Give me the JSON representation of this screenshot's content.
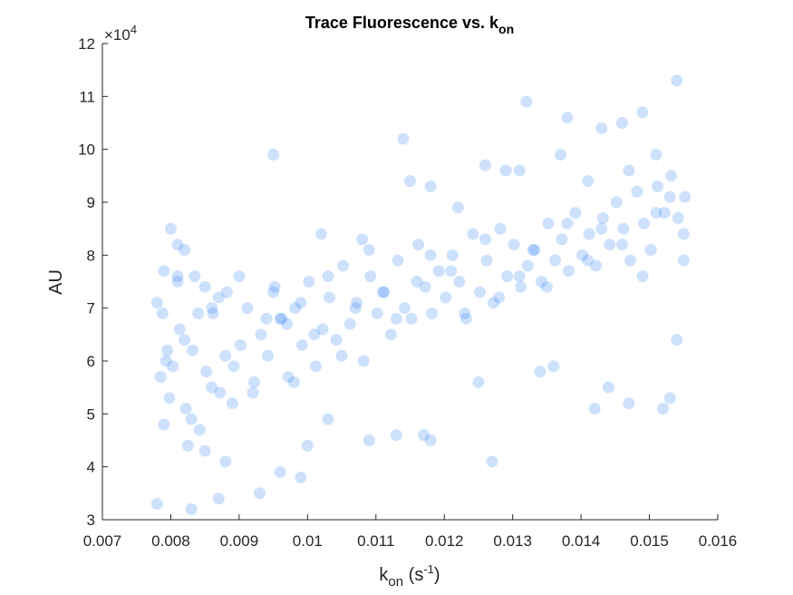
{
  "chart_data": {
    "type": "scatter",
    "title": {
      "main": "Trace Fluorescence vs. k",
      "sub": "on"
    },
    "xlabel": {
      "main": "k",
      "sub": "on",
      "unit_open": " (s",
      "sup": "-1",
      "unit_close": ")"
    },
    "ylabel": "AU",
    "y_exponent": {
      "base": "×10",
      "power": "4"
    },
    "xlim": [
      0.007,
      0.016
    ],
    "ylim": [
      3,
      12
    ],
    "x_ticks": [
      "0.007",
      "0.008",
      "0.009",
      "0.01",
      "0.011",
      "0.012",
      "0.013",
      "0.014",
      "0.015",
      "0.016"
    ],
    "y_ticks": [
      "3",
      "4",
      "5",
      "6",
      "7",
      "8",
      "9",
      "10",
      "11",
      "12"
    ],
    "grid": false,
    "marker_color": "#1f77f0",
    "marker_opacity": 0.22,
    "y_units_note": "y values in units of 10^4 AU",
    "x": [
      0.00785,
      0.0079,
      0.00795,
      0.0078,
      0.00788,
      0.00798,
      0.0081,
      0.0082,
      0.0083,
      0.00835,
      0.0084,
      0.0086,
      0.0087,
      0.0088,
      0.0089,
      0.0081,
      0.00825,
      0.0085,
      0.0092,
      0.0094,
      0.0095,
      0.0097,
      0.0098,
      0.0099,
      0.0101,
      0.0103,
      0.0105,
      0.0107,
      0.0109,
      0.0111,
      0.0113,
      0.0116,
      0.0118,
      0.0121,
      0.0123,
      0.0126,
      0.0128,
      0.0131,
      0.0133,
      0.0135,
      0.0138,
      0.0141,
      0.0143,
      0.0146,
      0.0149,
      0.0151,
      0.0153,
      0.0155,
      0.00793,
      0.00803,
      0.00813,
      0.00822,
      0.00832,
      0.00842,
      0.00852,
      0.00862,
      0.00872,
      0.00882,
      0.00892,
      0.00902,
      0.00912,
      0.00922,
      0.00932,
      0.00942,
      0.00952,
      0.00962,
      0.00972,
      0.00982,
      0.00992,
      0.01002,
      0.01012,
      0.01022,
      0.01032,
      0.01042,
      0.01052,
      0.01062,
      0.01072,
      0.01082,
      0.01092,
      0.01102,
      0.01112,
      0.01122,
      0.01132,
      0.01142,
      0.01152,
      0.01162,
      0.01172,
      0.01182,
      0.01192,
      0.01202,
      0.01212,
      0.01222,
      0.01232,
      0.01242,
      0.01252,
      0.01262,
      0.01272,
      0.01282,
      0.01292,
      0.01302,
      0.01312,
      0.01322,
      0.01332,
      0.01342,
      0.01352,
      0.01362,
      0.01372,
      0.01382,
      0.01392,
      0.01402,
      0.01412,
      0.01422,
      0.01432,
      0.01442,
      0.01452,
      0.01462,
      0.01472,
      0.01482,
      0.01492,
      0.01502,
      0.01512,
      0.01522,
      0.01532,
      0.01542,
      0.01552,
      0.0078,
      0.0083,
      0.0087,
      0.0096,
      0.0099,
      0.0103,
      0.0113,
      0.0118,
      0.0127,
      0.0136,
      0.0142,
      0.0147,
      0.0152,
      0.0154,
      0.0095,
      0.0114,
      0.0132,
      0.0138,
      0.0146,
      0.0154,
      0.0131,
      0.0149,
      0.0143,
      0.0126,
      0.0118,
      0.0082,
      0.008,
      0.0085,
      0.0088,
      0.0093,
      0.01,
      0.0109,
      0.0117,
      0.0125,
      0.0134,
      0.0144,
      0.0153,
      0.0155,
      0.0151,
      0.0147,
      0.0141,
      0.0137,
      0.0129,
      0.0122,
      0.0115,
      0.0108,
      0.0102,
      0.0096,
      0.009,
      0.0086,
      0.0081,
      0.0079
    ],
    "y": [
      5.7,
      4.8,
      6.2,
      7.1,
      6.9,
      5.3,
      7.5,
      6.4,
      4.9,
      7.6,
      6.9,
      5.5,
      7.2,
      6.1,
      5.2,
      8.2,
      4.4,
      7.4,
      5.4,
      6.8,
      7.3,
      6.7,
      5.6,
      7.1,
      6.5,
      7.6,
      6.1,
      7.0,
      8.1,
      7.3,
      6.8,
      7.5,
      8.0,
      7.7,
      6.9,
      8.3,
      7.2,
      7.6,
      8.1,
      7.4,
      8.6,
      7.9,
      8.5,
      8.2,
      7.6,
      8.8,
      9.1,
      8.4,
      6.0,
      5.9,
      6.6,
      5.1,
      6.2,
      4.7,
      5.8,
      6.9,
      5.4,
      7.3,
      5.9,
      6.3,
      7.0,
      5.6,
      6.5,
      6.1,
      7.4,
      6.8,
      5.7,
      7.0,
      6.3,
      7.5,
      5.9,
      6.6,
      7.2,
      6.4,
      7.8,
      6.7,
      7.1,
      6.0,
      7.6,
      6.9,
      7.3,
      6.5,
      7.9,
      7.0,
      6.8,
      8.2,
      7.4,
      6.9,
      7.7,
      7.2,
      8.0,
      7.5,
      6.8,
      8.4,
      7.3,
      7.9,
      7.1,
      8.5,
      7.6,
      8.2,
      7.4,
      7.8,
      8.1,
      7.5,
      8.6,
      7.9,
      8.3,
      7.7,
      8.8,
      8.0,
      8.4,
      7.8,
      8.7,
      8.2,
      9.0,
      8.5,
      7.9,
      9.2,
      8.6,
      8.1,
      9.3,
      8.8,
      9.5,
      8.7,
      9.1,
      3.3,
      3.2,
      3.4,
      3.9,
      3.8,
      4.9,
      4.6,
      4.5,
      4.1,
      5.9,
      5.1,
      5.2,
      5.1,
      6.4,
      9.9,
      10.2,
      10.9,
      10.6,
      10.5,
      11.3,
      9.6,
      10.7,
      10.4,
      9.7,
      9.3,
      8.1,
      8.5,
      4.3,
      4.1,
      3.5,
      4.4,
      4.5,
      4.6,
      5.6,
      5.8,
      5.5,
      5.3,
      7.9,
      9.9,
      9.6,
      9.4,
      9.9,
      9.6,
      8.9,
      9.4,
      8.3,
      8.4,
      6.8,
      7.6,
      7.0,
      7.6,
      7.7
    ]
  }
}
